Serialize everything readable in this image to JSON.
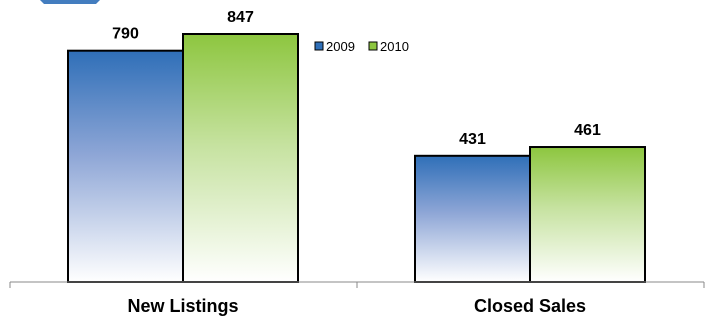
{
  "chart_data": {
    "type": "bar",
    "categories": [
      "New Listings",
      "Closed Sales"
    ],
    "series": [
      {
        "name": "2009",
        "values": [
          790,
          431
        ],
        "color": "#2f6fb8"
      },
      {
        "name": "2010",
        "values": [
          847,
          461
        ],
        "color": "#8dc63f"
      }
    ],
    "ylim": [
      0,
      900
    ],
    "grid": false,
    "legend": "top-center",
    "data_labels": true,
    "title": "",
    "xlabel": "",
    "ylabel": ""
  },
  "colors": {
    "series_2009": "#2f6fb8",
    "series_2010": "#8dc63f",
    "bar_outline": "#000000",
    "axis": "#888888"
  }
}
